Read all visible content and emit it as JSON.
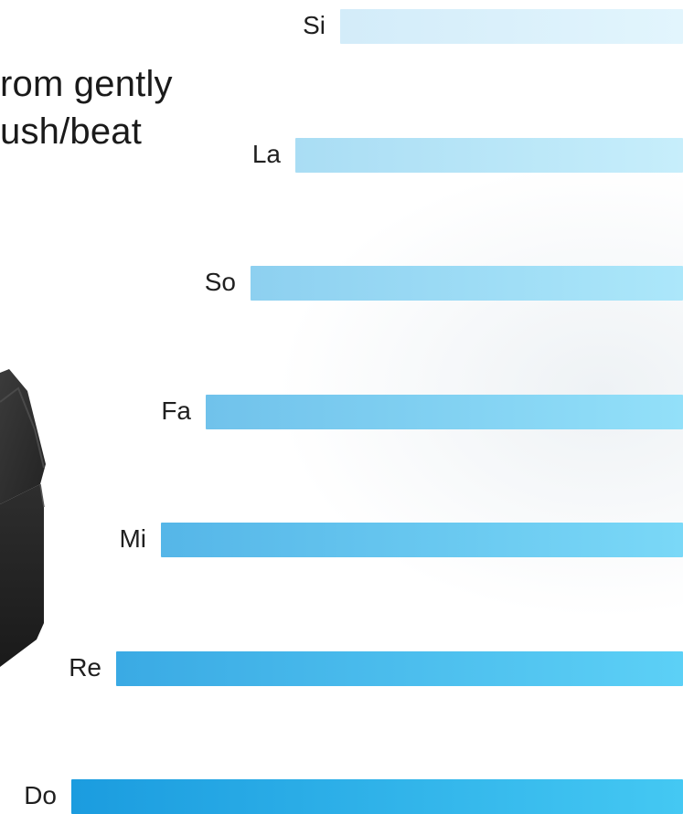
{
  "caption": {
    "line1": "rom gently",
    "line2": "ush/beat"
  },
  "device": {
    "icon": "speaker-cube-icon",
    "color": "#2a2a2a"
  },
  "notes": [
    {
      "label": "Si",
      "level": 7,
      "color_left": "#d3ecf9",
      "color_right": "#e2f5fd"
    },
    {
      "label": "La",
      "level": 6,
      "color_left": "#a9ddf4",
      "color_right": "#c7eefb"
    },
    {
      "label": "So",
      "level": 5,
      "color_left": "#8dd0f0",
      "color_right": "#ace7fa"
    },
    {
      "label": "Fa",
      "level": 4,
      "color_left": "#70c2eb",
      "color_right": "#93e0f9"
    },
    {
      "label": "Mi",
      "level": 3,
      "color_left": "#55b6e8",
      "color_right": "#7ad8f7"
    },
    {
      "label": "Re",
      "level": 2,
      "color_left": "#3aaae4",
      "color_right": "#5cd0f6"
    },
    {
      "label": "Do",
      "level": 1,
      "color_left": "#1b9cdf",
      "color_right": "#44c8f3"
    }
  ]
}
